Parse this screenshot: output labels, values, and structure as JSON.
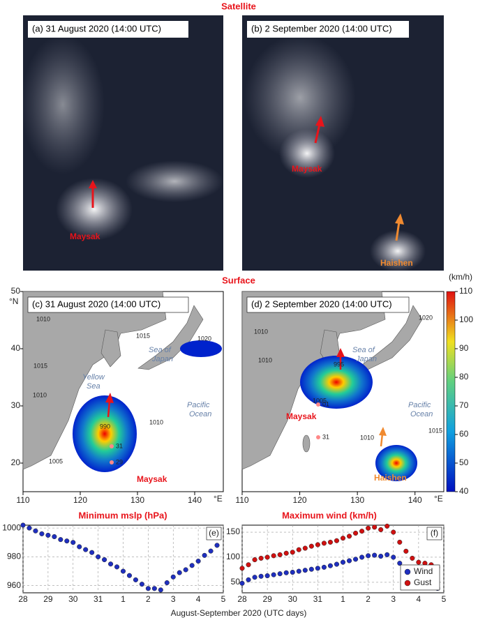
{
  "figure": {
    "satellite_heading": "Satellite",
    "surface_heading": "Surface",
    "xlabel": "August-September 2020 (UTC days)",
    "panels": {
      "a": "(a) 31 August 2020 (14:00 UTC)",
      "b": "(b) 2 September 2020 (14:00 UTC)",
      "c": "(c) 31 August 2020 (14:00 UTC)",
      "d": "(d) 2 September 2020 (14:00 UTC)"
    },
    "storms": {
      "maysak": "Maysak",
      "haishen": "Haishen"
    },
    "seas": {
      "sea_of_japan": [
        "Sea of",
        "Japan"
      ],
      "yellow_sea": [
        "Yellow",
        "Sea"
      ],
      "pacific_ocean": [
        "Pacific",
        "Ocean"
      ]
    },
    "isobars_c": [
      "1010",
      "1015",
      "1010",
      "1015",
      "1020",
      "1010",
      "1005",
      "990"
    ],
    "isobars_d": [
      "1010",
      "1010",
      "1020",
      "995",
      "1005",
      "1010",
      "1015"
    ],
    "track_c": [
      "31",
      "29"
    ],
    "track_d": [
      "01",
      "31"
    ]
  },
  "map": {
    "lonlim": [
      110,
      145
    ],
    "latlim": [
      15,
      50
    ],
    "lon_ticks": [
      110,
      120,
      130,
      140
    ],
    "lat_ticks": [
      20,
      30,
      40,
      50
    ],
    "lon_unit": "°E",
    "lat_unit": "°N"
  },
  "colorbar": {
    "label": "(km/h)",
    "lim": [
      40,
      110
    ],
    "ticks": [
      40,
      50,
      60,
      70,
      80,
      90,
      100,
      110
    ]
  },
  "chart_data": [
    {
      "type": "line",
      "title": "Minimum mslp (hPa)",
      "tag": "(e)",
      "color": "#1f2fbf",
      "x": [
        0,
        0.25,
        0.5,
        0.75,
        1,
        1.25,
        1.5,
        1.75,
        2,
        2.25,
        2.5,
        2.75,
        3,
        3.25,
        3.5,
        3.75,
        4,
        4.25,
        4.5,
        4.75,
        5,
        5.25,
        5.5,
        5.75,
        6,
        6.25,
        6.5,
        6.75,
        7,
        7.25,
        7.5,
        7.75
      ],
      "values": [
        1002,
        1000,
        998,
        996,
        995,
        994,
        992,
        991,
        990,
        987,
        985,
        983,
        980,
        978,
        975,
        973,
        970,
        967,
        964,
        961,
        958,
        958,
        957,
        962,
        966,
        969,
        971,
        974,
        977,
        981,
        984,
        988
      ],
      "xlim": [
        0,
        8
      ],
      "xticks": [
        {
          "value": 0,
          "label": "28"
        },
        {
          "value": 1,
          "label": "29"
        },
        {
          "value": 2,
          "label": "30"
        },
        {
          "value": 3,
          "label": "31"
        },
        {
          "value": 4,
          "label": "1"
        },
        {
          "value": 5,
          "label": "2"
        },
        {
          "value": 6,
          "label": "3"
        },
        {
          "value": 7,
          "label": "4"
        },
        {
          "value": 8,
          "label": "5"
        }
      ],
      "ylim": [
        955,
        1002
      ],
      "yticks": [
        960,
        980,
        1000
      ],
      "grid": true
    },
    {
      "type": "line",
      "title": "Maximum wind (km/h)",
      "tag": "(f)",
      "legend": "lower right",
      "x": [
        0,
        0.25,
        0.5,
        0.75,
        1,
        1.25,
        1.5,
        1.75,
        2,
        2.25,
        2.5,
        2.75,
        3,
        3.25,
        3.5,
        3.75,
        4,
        4.25,
        4.5,
        4.75,
        5,
        5.25,
        5.5,
        5.75,
        6,
        6.25,
        6.5,
        6.75,
        7,
        7.25,
        7.5,
        7.75
      ],
      "series": [
        {
          "name": "Wind",
          "color": "#1f2fbf",
          "values": [
            48,
            55,
            60,
            62,
            63,
            65,
            67,
            69,
            70,
            72,
            74,
            76,
            78,
            80,
            83,
            86,
            90,
            93,
            96,
            100,
            103,
            104,
            102,
            105,
            100,
            88,
            75,
            60,
            52,
            50,
            45,
            38
          ]
        },
        {
          "name": "Gust",
          "color": "#d01010",
          "values": [
            78,
            85,
            95,
            98,
            100,
            103,
            105,
            108,
            110,
            115,
            118,
            122,
            125,
            128,
            130,
            133,
            138,
            142,
            148,
            152,
            158,
            160,
            155,
            162,
            150,
            130,
            112,
            98,
            90,
            88,
            85,
            80
          ]
        }
      ],
      "xlim": [
        0,
        8
      ],
      "xticks": [
        {
          "value": 0,
          "label": "28"
        },
        {
          "value": 1,
          "label": "29"
        },
        {
          "value": 2,
          "label": "30"
        },
        {
          "value": 3,
          "label": "31"
        },
        {
          "value": 4,
          "label": "1"
        },
        {
          "value": 5,
          "label": "2"
        },
        {
          "value": 6,
          "label": "3"
        },
        {
          "value": 7,
          "label": "4"
        },
        {
          "value": 8,
          "label": "5"
        }
      ],
      "ylim": [
        29,
        164
      ],
      "yticks": [
        50,
        100,
        150
      ],
      "grid": true
    }
  ]
}
